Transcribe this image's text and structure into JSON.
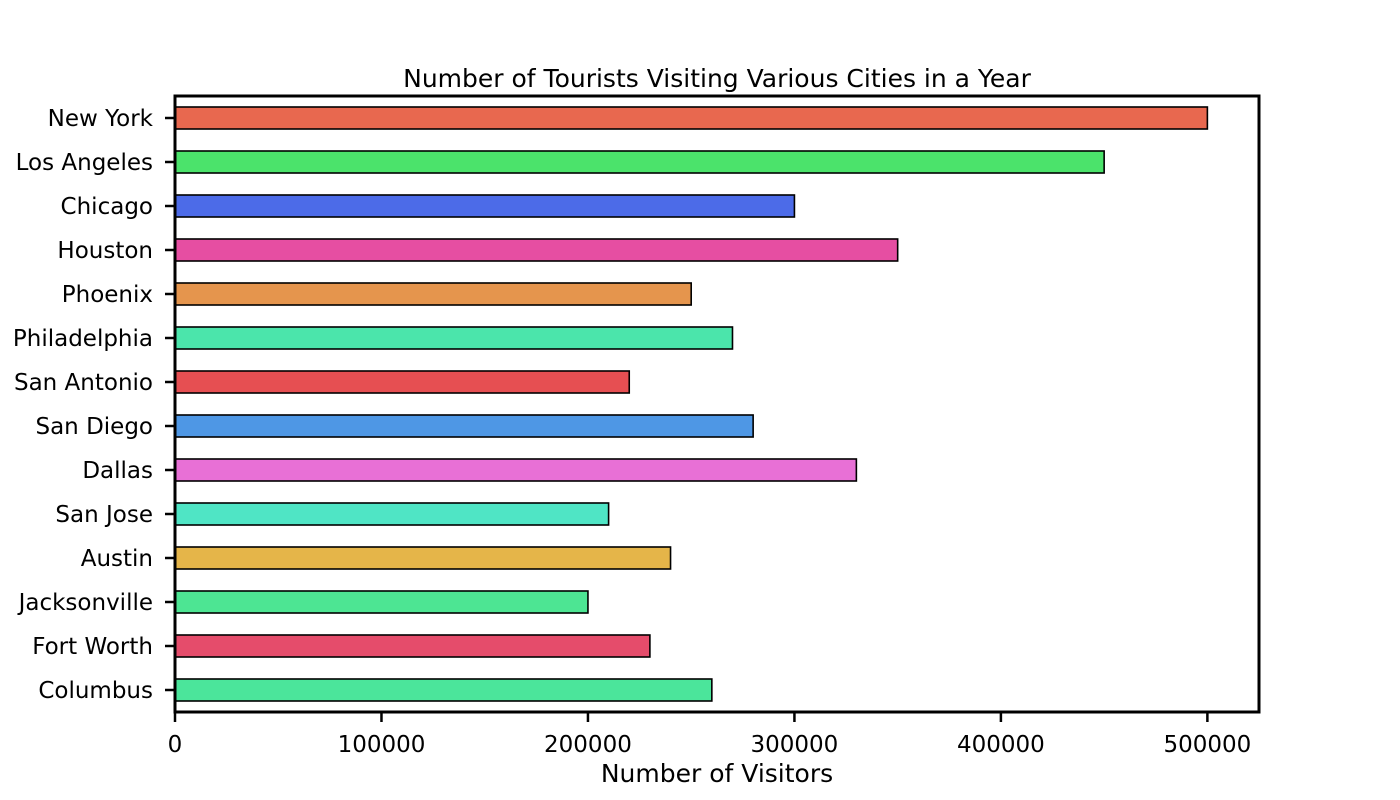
{
  "chart_data": {
    "type": "bar",
    "orientation": "horizontal",
    "title": "Number of Tourists Visiting Various Cities in a Year",
    "xlabel": "Number of Visitors",
    "ylabel": "",
    "xlim": [
      0,
      525000
    ],
    "xticks": [
      0,
      100000,
      200000,
      300000,
      400000,
      500000
    ],
    "xtick_labels": [
      "0",
      "100000",
      "200000",
      "300000",
      "400000",
      "500000"
    ],
    "grid": false,
    "categories": [
      "New York",
      "Los Angeles",
      "Chicago",
      "Houston",
      "Phoenix",
      "Philadelphia",
      "San Antonio",
      "San Diego",
      "Dallas",
      "San Jose",
      "Austin",
      "Jacksonville",
      "Fort Worth",
      "Columbus"
    ],
    "values": [
      500000,
      450000,
      300000,
      350000,
      250000,
      270000,
      220000,
      280000,
      330000,
      210000,
      240000,
      200000,
      230000,
      260000
    ],
    "colors": [
      "#e8684f",
      "#4be36b",
      "#4c6be8",
      "#e64ea2",
      "#e5954d",
      "#4be5ab",
      "#e64f52",
      "#4e97e5",
      "#e870d6",
      "#4fe5c5",
      "#e5b549",
      "#4de593",
      "#e54c6b",
      "#4be59b"
    ],
    "edge_color": "#000000"
  }
}
